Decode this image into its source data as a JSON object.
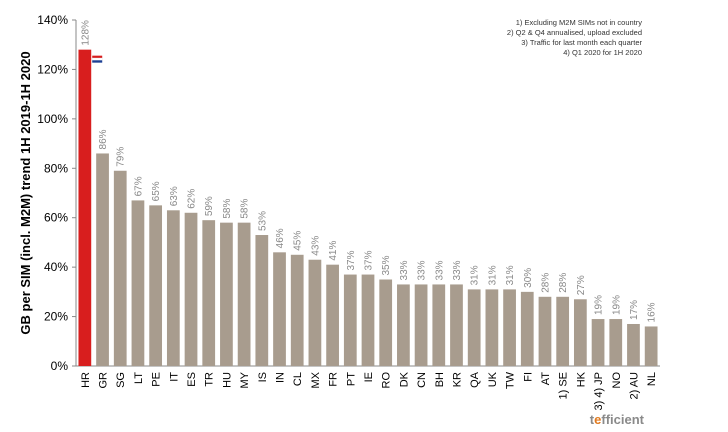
{
  "chart_data": {
    "type": "bar",
    "ylabel": "GB per SIM (incl. M2M) trend 1H 2019-1H 2020",
    "ylim": [
      0,
      140
    ],
    "yticks": [
      0,
      20,
      40,
      60,
      80,
      100,
      120,
      140
    ],
    "ytick_suffix": "%",
    "grid": false,
    "categories": [
      "HR",
      "GR",
      "SG",
      "LT",
      "PE",
      "IT",
      "ES",
      "TR",
      "HU",
      "MY",
      "IS",
      "IN",
      "CL",
      "MX",
      "FR",
      "PT",
      "IE",
      "RO",
      "DK",
      "CN",
      "BH",
      "KR",
      "QA",
      "UK",
      "TW",
      "FI",
      "AT",
      "1) SE",
      "HK",
      "3) 4) JP",
      "NO",
      "2) AU",
      "NL"
    ],
    "values": [
      128,
      86,
      79,
      67,
      65,
      63,
      62,
      59,
      58,
      58,
      53,
      46,
      45,
      43,
      41,
      37,
      37,
      35,
      33,
      33,
      33,
      33,
      31,
      31,
      31,
      30,
      28,
      28,
      27,
      19,
      19,
      17,
      16
    ],
    "data_labels": [
      "128%",
      "86%",
      "79%",
      "67%",
      "65%",
      "63%",
      "62%",
      "59%",
      "58%",
      "58%",
      "53%",
      "46%",
      "45%",
      "43%",
      "41%",
      "37%",
      "37%",
      "35%",
      "33%",
      "33%",
      "33%",
      "33%",
      "31%",
      "31%",
      "31%",
      "30%",
      "28%",
      "28%",
      "27%",
      "19%",
      "19%",
      "17%",
      "16%"
    ],
    "highlight_category": "HR",
    "colors": {
      "bar": "#a89c8e",
      "highlight": "#d81e1e",
      "label": "#888888",
      "axis": "#888888"
    },
    "flag": "croatia-flag"
  },
  "notes": [
    "1) Excluding M2M SIMs not in country",
    "2) Q2 & Q4 annualised, upload excluded",
    "3) Traffic for last month each quarter",
    "4) Q1 2020 for 1H 2020"
  ],
  "watermark": {
    "prefix": "t",
    "accent": "e",
    "rest": "fficient"
  }
}
